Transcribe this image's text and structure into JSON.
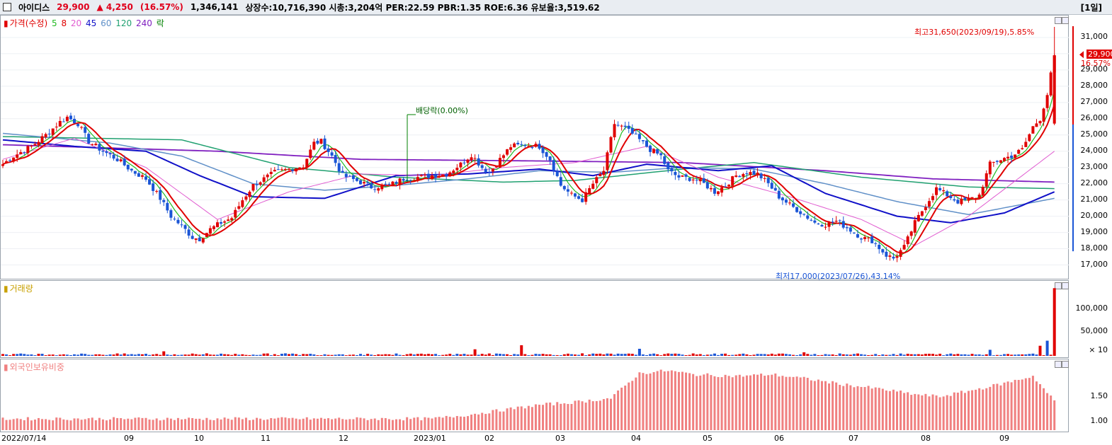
{
  "header": {
    "name": "아이디스",
    "price": "29,900",
    "change": "▲ 4,250",
    "change_pct": "(16.57%)",
    "volume": "1,346,141",
    "info": "상장수:10,716,390 시총:3,204억 PER:22.59 PBR:1.35 ROE:6.36 유보율:3,519.62",
    "period": "[1일]"
  },
  "price_panel": {
    "legend": {
      "label": "가격(수정)",
      "ma": [
        "5",
        "8",
        "20",
        "45",
        "60",
        "120",
        "240"
      ],
      "ma_colors": [
        "#22bb22",
        "#e00000",
        "#e05cd0",
        "#1010c8",
        "#6090c8",
        "#20a070",
        "#8020c0"
      ],
      "extra": "락"
    },
    "annotations": {
      "high": "최고31,650(2023/09/19),5.85%",
      "low": "최저17,000(2023/07/26),43.14%",
      "dividend": "배당락(0.00%)"
    },
    "current_price": "29,900",
    "current_pct": "16.57%",
    "y_ticks": [
      "31,000",
      "29,000",
      "28,000",
      "27,000",
      "26,000",
      "25,000",
      "24,000",
      "23,000",
      "22,000",
      "21,000",
      "20,000",
      "19,000",
      "18,000",
      "17,000"
    ]
  },
  "volume_panel": {
    "legend": "거래량",
    "y_ticks": [
      "100,000",
      "50,000",
      "× 10"
    ]
  },
  "foreign_panel": {
    "legend": "외국인보유비중",
    "y_ticks": [
      "1.50",
      "1.00"
    ]
  },
  "x_axis": [
    "2022/07/14",
    "09",
    "10",
    "11",
    "12",
    "2023/01",
    "02",
    "03",
    "04",
    "05",
    "06",
    "07",
    "08",
    "09"
  ],
  "colors": {
    "up": "#e00000",
    "down": "#1a55d6",
    "foreign_bar": "#f08080"
  },
  "chart_data": {
    "type": "candlestick",
    "ylim": [
      16500,
      32000
    ],
    "price_anchors": [
      [
        0,
        23200
      ],
      [
        3,
        23700
      ],
      [
        8,
        24300
      ],
      [
        12,
        25000
      ],
      [
        16,
        25800
      ],
      [
        18,
        26100
      ],
      [
        21,
        25700
      ],
      [
        24,
        24600
      ],
      [
        28,
        24000
      ],
      [
        32,
        23500
      ],
      [
        36,
        22800
      ],
      [
        40,
        22300
      ],
      [
        44,
        21100
      ],
      [
        47,
        20000
      ],
      [
        50,
        19400
      ],
      [
        53,
        18700
      ],
      [
        55,
        18600
      ],
      [
        58,
        19200
      ],
      [
        61,
        19600
      ],
      [
        64,
        19900
      ],
      [
        67,
        21000
      ],
      [
        70,
        21900
      ],
      [
        73,
        22300
      ],
      [
        76,
        22700
      ],
      [
        80,
        22900
      ],
      [
        84,
        23100
      ],
      [
        87,
        24500
      ],
      [
        89,
        24600
      ],
      [
        92,
        23700
      ],
      [
        95,
        22500
      ],
      [
        100,
        22100
      ],
      [
        103,
        21800
      ],
      [
        108,
        21900
      ],
      [
        112,
        22300
      ],
      [
        116,
        22400
      ],
      [
        120,
        22500
      ],
      [
        124,
        22600
      ],
      [
        128,
        23200
      ],
      [
        131,
        23800
      ],
      [
        134,
        23000
      ],
      [
        136,
        22700
      ],
      [
        139,
        23500
      ],
      [
        142,
        24300
      ],
      [
        146,
        24400
      ],
      [
        150,
        24300
      ],
      [
        153,
        23500
      ],
      [
        156,
        21900
      ],
      [
        159,
        21300
      ],
      [
        162,
        21000
      ],
      [
        165,
        22000
      ],
      [
        168,
        22800
      ],
      [
        171,
        25700
      ],
      [
        174,
        25400
      ],
      [
        177,
        24900
      ],
      [
        181,
        24100
      ],
      [
        184,
        23700
      ],
      [
        186,
        22800
      ],
      [
        189,
        22400
      ],
      [
        193,
        22300
      ],
      [
        196,
        22000
      ],
      [
        199,
        21500
      ],
      [
        202,
        21900
      ],
      [
        205,
        22500
      ],
      [
        208,
        22700
      ],
      [
        211,
        22600
      ],
      [
        214,
        22000
      ],
      [
        217,
        21200
      ],
      [
        220,
        20700
      ],
      [
        224,
        20100
      ],
      [
        227,
        19600
      ],
      [
        230,
        19500
      ],
      [
        233,
        19700
      ],
      [
        236,
        19300
      ],
      [
        240,
        18700
      ],
      [
        243,
        18500
      ],
      [
        247,
        17600
      ],
      [
        249,
        17400
      ],
      [
        252,
        18100
      ],
      [
        255,
        19600
      ],
      [
        258,
        20700
      ],
      [
        261,
        21700
      ],
      [
        264,
        21300
      ],
      [
        267,
        20900
      ],
      [
        270,
        21000
      ],
      [
        273,
        21300
      ],
      [
        276,
        23200
      ],
      [
        279,
        23500
      ],
      [
        282,
        23700
      ],
      [
        285,
        24100
      ],
      [
        288,
        25500
      ],
      [
        290,
        26000
      ],
      [
        292,
        27500
      ],
      [
        294,
        29900
      ]
    ],
    "ma_anchors": {
      "ma20": [
        [
          0,
          23500
        ],
        [
          20,
          24800
        ],
        [
          40,
          23000
        ],
        [
          60,
          19800
        ],
        [
          80,
          21500
        ],
        [
          100,
          22600
        ],
        [
          120,
          22500
        ],
        [
          140,
          23000
        ],
        [
          160,
          23300
        ],
        [
          180,
          24300
        ],
        [
          200,
          22400
        ],
        [
          220,
          21200
        ],
        [
          240,
          19800
        ],
        [
          255,
          18200
        ],
        [
          270,
          20000
        ],
        [
          294,
          24000
        ]
      ],
      "ma45": [
        [
          0,
          24700
        ],
        [
          20,
          24300
        ],
        [
          40,
          24000
        ],
        [
          55,
          22500
        ],
        [
          70,
          21200
        ],
        [
          90,
          21100
        ],
        [
          110,
          22500
        ],
        [
          130,
          22600
        ],
        [
          150,
          22900
        ],
        [
          165,
          22500
        ],
        [
          180,
          23200
        ],
        [
          200,
          22800
        ],
        [
          215,
          23100
        ],
        [
          230,
          21400
        ],
        [
          250,
          20000
        ],
        [
          265,
          19600
        ],
        [
          280,
          20200
        ],
        [
          294,
          21500
        ]
      ],
      "ma60": [
        [
          0,
          25100
        ],
        [
          30,
          24500
        ],
        [
          50,
          23700
        ],
        [
          70,
          22000
        ],
        [
          90,
          21600
        ],
        [
          110,
          21900
        ],
        [
          130,
          22300
        ],
        [
          150,
          22800
        ],
        [
          170,
          22700
        ],
        [
          190,
          23000
        ],
        [
          210,
          22900
        ],
        [
          230,
          22000
        ],
        [
          250,
          20900
        ],
        [
          270,
          20100
        ],
        [
          294,
          21100
        ]
      ],
      "ma120": [
        [
          0,
          24900
        ],
        [
          50,
          24700
        ],
        [
          80,
          23000
        ],
        [
          110,
          22400
        ],
        [
          140,
          22100
        ],
        [
          160,
          22200
        ],
        [
          190,
          22900
        ],
        [
          210,
          23300
        ],
        [
          240,
          22400
        ],
        [
          270,
          21800
        ],
        [
          294,
          21700
        ]
      ],
      "ma240": [
        [
          0,
          24400
        ],
        [
          60,
          24000
        ],
        [
          100,
          23500
        ],
        [
          150,
          23400
        ],
        [
          190,
          23300
        ],
        [
          230,
          22800
        ],
        [
          260,
          22300
        ],
        [
          294,
          22100
        ]
      ]
    },
    "volume_spikes": [
      [
        45,
        9000
      ],
      [
        57,
        5000
      ],
      [
        79,
        5000
      ],
      [
        132,
        13000
      ],
      [
        145,
        21000
      ],
      [
        162,
        5000
      ],
      [
        178,
        14000
      ],
      [
        224,
        7000
      ],
      [
        276,
        12000
      ],
      [
        290,
        20000
      ],
      [
        292,
        30000
      ],
      [
        294,
        134000
      ]
    ],
    "volume_base": 3000,
    "foreign_anchors": [
      [
        0,
        1.08
      ],
      [
        30,
        1.08
      ],
      [
        60,
        1.08
      ],
      [
        90,
        1.08
      ],
      [
        120,
        1.08
      ],
      [
        130,
        1.15
      ],
      [
        150,
        1.33
      ],
      [
        160,
        1.38
      ],
      [
        170,
        1.45
      ],
      [
        178,
        1.9
      ],
      [
        186,
        1.95
      ],
      [
        193,
        1.88
      ],
      [
        205,
        1.85
      ],
      [
        215,
        1.88
      ],
      [
        225,
        1.8
      ],
      [
        235,
        1.7
      ],
      [
        245,
        1.62
      ],
      [
        255,
        1.52
      ],
      [
        262,
        1.48
      ],
      [
        270,
        1.58
      ],
      [
        280,
        1.72
      ],
      [
        288,
        1.85
      ],
      [
        294,
        1.4
      ]
    ]
  }
}
